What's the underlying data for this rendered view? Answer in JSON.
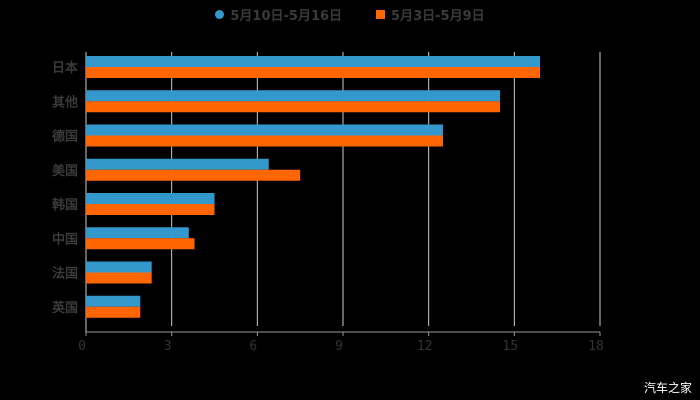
{
  "chart_data": {
    "type": "bar",
    "orientation": "horizontal",
    "title": "",
    "categories": [
      "日本",
      "其他",
      "德国",
      "美国",
      "韩国",
      "中国",
      "法国",
      "英国"
    ],
    "series": [
      {
        "name": "5月10日-5月16日",
        "color": "#3399cc",
        "values": [
          15.9,
          14.5,
          12.5,
          6.4,
          4.5,
          3.6,
          2.3,
          1.9
        ]
      },
      {
        "name": "5月3日-5月9日",
        "color": "#ff6600",
        "values": [
          15.9,
          14.5,
          12.5,
          7.5,
          4.5,
          3.8,
          2.3,
          1.9
        ]
      }
    ],
    "xlabel": "",
    "ylabel": "",
    "xlim": [
      0,
      18
    ],
    "xticks": [
      0,
      3,
      6,
      9,
      12,
      15,
      18
    ],
    "grid": true,
    "legend_position": "top"
  },
  "legend": {
    "series1_label": "5月10日-5月16日",
    "series2_label": "5月3日-5月9日"
  },
  "watermark": "汽车之家",
  "colors": {
    "background": "#000000",
    "series1": "#3399cc",
    "series2": "#ff6600",
    "grid": "#cccccc",
    "text": "#3a3a3a"
  }
}
